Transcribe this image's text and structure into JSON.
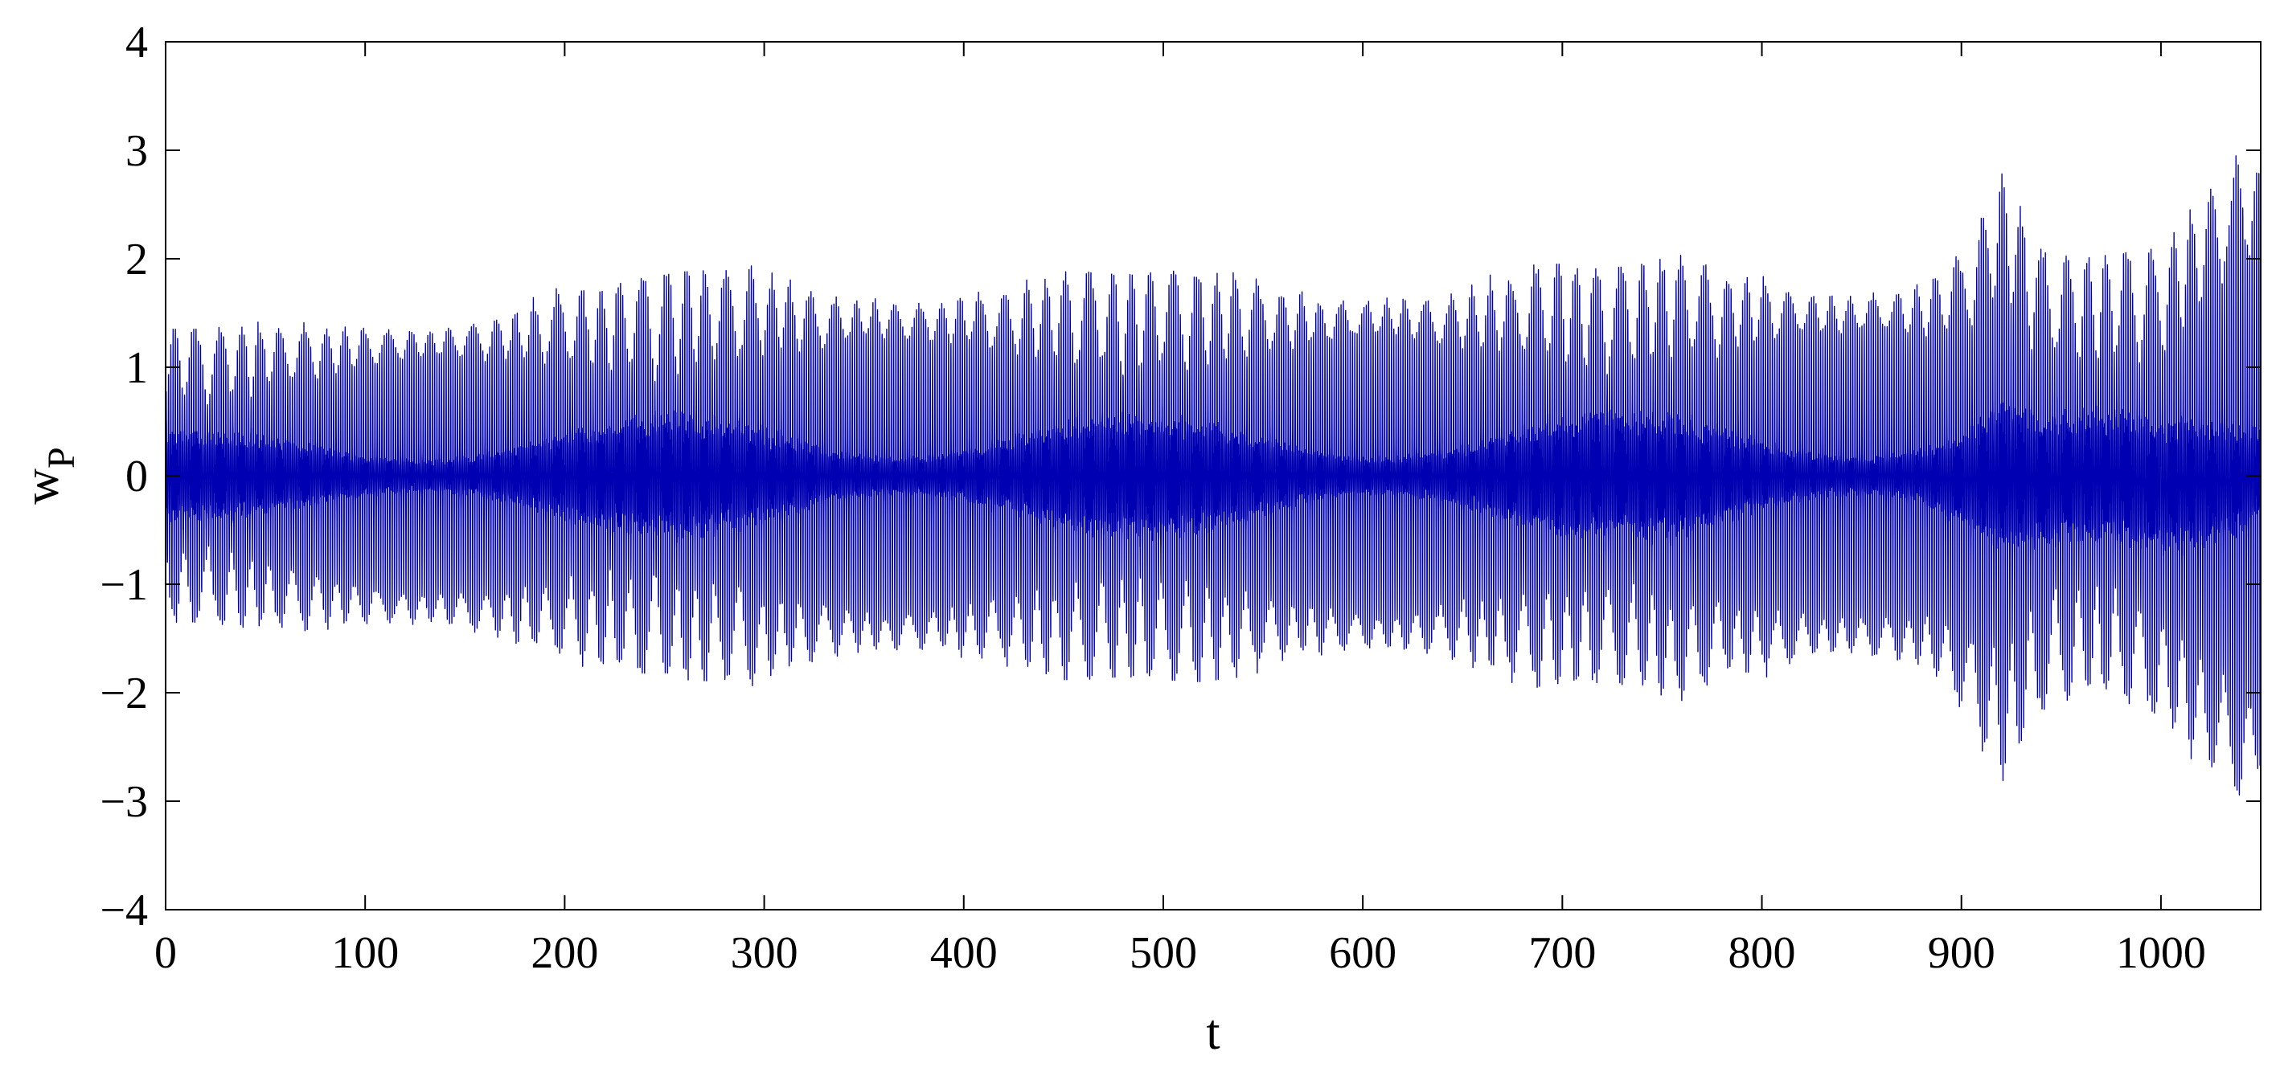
{
  "chart_data": {
    "type": "line",
    "title": "",
    "xlabel": "t",
    "ylabel_main": "w",
    "ylabel_sub": "P",
    "xlim": [
      0,
      1050
    ],
    "ylim": [
      -4,
      4
    ],
    "xticks": [
      0,
      100,
      200,
      300,
      400,
      500,
      600,
      700,
      800,
      900,
      1000
    ],
    "xtick_labels": [
      "0",
      "100",
      "200",
      "300",
      "400",
      "500",
      "600",
      "700",
      "800",
      "900",
      "1000"
    ],
    "yticks": [
      -4,
      -3,
      -2,
      -1,
      0,
      1,
      2,
      3,
      4
    ],
    "ytick_labels": [
      "−4",
      "−3",
      "−2",
      "−1",
      "0",
      "1",
      "2",
      "3",
      "4"
    ],
    "grid": false,
    "legend": "none",
    "line_color": "#0000b3",
    "series": [
      {
        "envelope_t": [
          0,
          20,
          40,
          60,
          80,
          100,
          120,
          140,
          160,
          180,
          200,
          220,
          240,
          260,
          280,
          300,
          320,
          340,
          360,
          380,
          400,
          420,
          440,
          460,
          480,
          500,
          520,
          540,
          560,
          580,
          600,
          620,
          640,
          660,
          680,
          700,
          720,
          740,
          760,
          780,
          800,
          820,
          840,
          860,
          880,
          900,
          920,
          940,
          960,
          980,
          1000,
          1020,
          1040,
          1050
        ],
        "envelope_max": [
          1.35,
          1.35,
          1.4,
          1.45,
          1.5,
          1.55,
          1.58,
          1.6,
          1.65,
          1.7,
          1.75,
          1.78,
          1.82,
          1.88,
          1.9,
          1.95,
          1.9,
          1.85,
          1.88,
          1.85,
          1.88,
          1.85,
          1.88,
          1.88,
          1.85,
          1.88,
          1.9,
          1.88,
          1.88,
          1.85,
          1.88,
          1.9,
          1.85,
          1.9,
          1.95,
          1.95,
          1.9,
          1.95,
          2.05,
          1.95,
          2.0,
          1.95,
          1.92,
          1.95,
          2.0,
          2.2,
          2.9,
          2.1,
          2.0,
          2.05,
          2.1,
          2.7,
          3.2,
          3.15
        ],
        "envelope_min": [
          -1.35,
          -1.35,
          -1.4,
          -1.45,
          -1.5,
          -1.55,
          -1.58,
          -1.6,
          -1.65,
          -1.7,
          -1.75,
          -1.78,
          -1.82,
          -1.88,
          -1.9,
          -1.95,
          -1.9,
          -1.85,
          -1.88,
          -1.85,
          -1.88,
          -1.85,
          -1.88,
          -1.88,
          -1.85,
          -1.88,
          -1.9,
          -1.88,
          -1.88,
          -1.85,
          -1.88,
          -1.9,
          -1.85,
          -1.9,
          -1.95,
          -1.95,
          -1.9,
          -1.95,
          -2.1,
          -1.95,
          -2.0,
          -1.95,
          -1.92,
          -1.95,
          -2.0,
          -2.3,
          -2.9,
          -2.2,
          -2.0,
          -2.05,
          -2.3,
          -2.8,
          -3.3,
          -3.1
        ]
      }
    ]
  }
}
